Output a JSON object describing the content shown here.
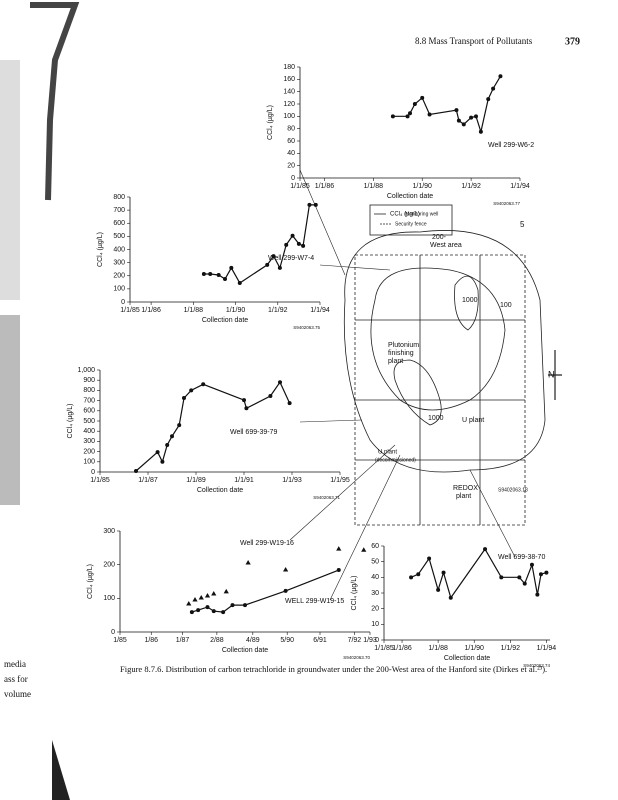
{
  "header": {
    "section": "8.8  Mass Transport of Pollutants",
    "page": "379"
  },
  "margin_text": [
    "media",
    "ass for",
    "volume"
  ],
  "caption": "Figure 8.7.6. Distribution of carbon tetrachloride in groundwater under the 200-West area of the Hanford site (Dirkes et al.²³).",
  "map": {
    "labels": [
      "CCl₄ (µg/L)",
      "Monitoring well",
      "Security fence",
      "200-",
      "West area",
      "5",
      "1000",
      "100",
      "Plutonium",
      "finishing",
      "plant",
      "1000",
      "U plant",
      "U plant",
      "(decommissioned)",
      "REDOX",
      "plant",
      "S9402063.18",
      "N"
    ]
  },
  "chart_data": [
    {
      "type": "line",
      "y_label": "CCl₄ (µg/L)",
      "x_label": "Collection date",
      "code": "S9402063.77",
      "xlim": [
        1985,
        1994
      ],
      "ylim": [
        0,
        180
      ],
      "xticks": [
        {
          "value": 1985,
          "label": "1/1/85"
        },
        {
          "value": 1986,
          "label": "1/1/86"
        },
        {
          "value": 1988,
          "label": "1/1/88"
        },
        {
          "value": 1990,
          "label": "1/1/90"
        },
        {
          "value": 1992,
          "label": "1/1/92"
        },
        {
          "value": 1994,
          "label": "1/1/94"
        }
      ],
      "yticks": [
        0,
        20,
        40,
        60,
        80,
        100,
        120,
        140,
        160,
        180
      ],
      "series": [
        {
          "name": "Well 299-W6-2",
          "color": "#111111",
          "marker": "circle",
          "line": true,
          "x": [
            1988.8,
            1989.4,
            1989.5,
            1989.7,
            1990,
            1990.3,
            1991.4,
            1991.5,
            1991.7,
            1992,
            1992.2,
            1992.4,
            1992.7,
            1992.9,
            1993.2
          ],
          "values": [
            100,
            100,
            105,
            120,
            130,
            103,
            110,
            93,
            87,
            98,
            100,
            75,
            128,
            145,
            165
          ]
        }
      ]
    },
    {
      "type": "line",
      "y_label": "CCl₄ (µg/L)",
      "x_label": "Collection date",
      "code": "S9402063.75",
      "xlim": [
        1985,
        1994
      ],
      "ylim": [
        0,
        800
      ],
      "xticks": [
        {
          "value": 1985,
          "label": "1/1/85"
        },
        {
          "value": 1986,
          "label": "1/1/86"
        },
        {
          "value": 1988,
          "label": "1/1/88"
        },
        {
          "value": 1990,
          "label": "1/1/90"
        },
        {
          "value": 1992,
          "label": "1/1/92"
        },
        {
          "value": 1994,
          "label": "1/1/94"
        }
      ],
      "yticks": [
        0,
        100,
        200,
        300,
        400,
        500,
        600,
        700,
        800
      ],
      "series": [
        {
          "name": "Well 299-W7-4",
          "color": "#111111",
          "marker": "circle",
          "line": true,
          "x": [
            1988.5,
            1988.8,
            1989.2,
            1989.5,
            1989.8,
            1990.2,
            1991.5,
            1991.8,
            1992.1,
            1992.4,
            1992.7,
            1993,
            1993.2,
            1993.5,
            1993.8
          ],
          "values": [
            213,
            213,
            206,
            175,
            260,
            145,
            283,
            350,
            260,
            435,
            505,
            443,
            428,
            740,
            740
          ]
        }
      ]
    },
    {
      "type": "line",
      "y_label": "CCl₄ (µg/L)",
      "x_label": "Collection date",
      "code": "S9402063.71",
      "xlim": [
        1985,
        1995
      ],
      "ylim": [
        0,
        1000
      ],
      "xticks": [
        {
          "value": 1985,
          "label": "1/1/85"
        },
        {
          "value": 1987,
          "label": "1/1/87"
        },
        {
          "value": 1989,
          "label": "1/1/89"
        },
        {
          "value": 1991,
          "label": "1/1/91"
        },
        {
          "value": 1993,
          "label": "1/1/93"
        },
        {
          "value": 1995,
          "label": "1/1/95"
        }
      ],
      "yticks": [
        0,
        100,
        200,
        300,
        400,
        500,
        600,
        700,
        800,
        900,
        {
          "value": 1000,
          "label": "1,000"
        }
      ],
      "series": [
        {
          "name": "Well 699-39-79",
          "color": "#111111",
          "marker": "circle",
          "line": true,
          "x": [
            1986.5,
            1987.4,
            1987.6,
            1987.8,
            1988,
            1988.3,
            1988.5,
            1988.8,
            1989.3,
            1991,
            1991.1,
            1992.1,
            1992.5,
            1992.9
          ],
          "values": [
            10,
            195,
            100,
            265,
            350,
            460,
            725,
            800,
            860,
            705,
            625,
            745,
            880,
            675
          ]
        }
      ]
    },
    {
      "type": "line",
      "y_label": "CCl₄ (µg/L)",
      "x_label": "Collection date",
      "code": "S9402063.70",
      "xlim": [
        1985,
        1993
      ],
      "ylim": [
        0,
        300
      ],
      "xticks": [
        {
          "value": 1985,
          "label": "1/85"
        },
        {
          "value": 1986,
          "label": "1/86"
        },
        {
          "value": 1987,
          "label": "1/87"
        },
        {
          "value": 1988.1,
          "label": "2/88"
        },
        {
          "value": 1989.25,
          "label": "4/89"
        },
        {
          "value": 1990.35,
          "label": "5/90"
        },
        {
          "value": 1991.4,
          "label": "6/91"
        },
        {
          "value": 1992.5,
          "label": "7/92"
        },
        {
          "value": 1993,
          "label": "1/93"
        }
      ],
      "yticks": [
        0,
        100,
        200,
        300
      ],
      "series": [
        {
          "name": "Well 299-W19-16",
          "color": "#111111",
          "marker": "triangle",
          "line": false,
          "x": [
            1987.2,
            1987.4,
            1987.6,
            1987.8,
            1988,
            1988.4,
            1989.1,
            1990.3,
            1992,
            1992.8
          ],
          "values": [
            83,
            95,
            101,
            107,
            113,
            119,
            205,
            184,
            246,
            243
          ]
        },
        {
          "name": "WELL 299-W19-15",
          "color": "#111111",
          "marker": "circle",
          "line": true,
          "x": [
            1987.3,
            1987.5,
            1987.8,
            1988,
            1988.3,
            1988.6,
            1989,
            1990.3,
            1992
          ],
          "values": [
            59,
            65,
            74,
            62,
            59,
            80,
            80,
            122,
            184
          ]
        }
      ]
    },
    {
      "type": "line",
      "y_label": "CCl₄ (µg/L)",
      "x_label": "Collection date",
      "code": "S9402063.74",
      "xlim": [
        1985,
        1994.2
      ],
      "ylim": [
        0,
        60
      ],
      "xticks": [
        {
          "value": 1985,
          "label": "1/1/85"
        },
        {
          "value": 1986,
          "label": "1/1/86"
        },
        {
          "value": 1988,
          "label": "1/1/88"
        },
        {
          "value": 1990,
          "label": "1/1/90"
        },
        {
          "value": 1992,
          "label": "1/1/92"
        },
        {
          "value": 1994,
          "label": "1/1/94"
        }
      ],
      "yticks": [
        0,
        10,
        20,
        30,
        40,
        50,
        60
      ],
      "series": [
        {
          "name": "Well 699-38-70",
          "color": "#111111",
          "marker": "circle",
          "line": true,
          "x": [
            1986.5,
            1986.9,
            1987.5,
            1988,
            1988.3,
            1988.7,
            1990.6,
            1991.5,
            1992.5,
            1992.8,
            1993.2,
            1993.5,
            1993.7,
            1994
          ],
          "values": [
            40,
            42,
            52,
            32,
            43,
            27,
            58,
            40,
            40,
            36,
            48,
            29,
            42,
            43
          ]
        }
      ]
    }
  ]
}
